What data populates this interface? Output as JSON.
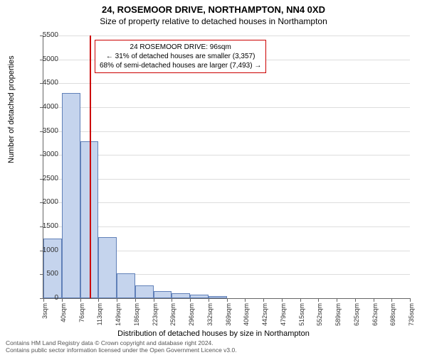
{
  "title": "24, ROSEMOOR DRIVE, NORTHAMPTON, NN4 0XD",
  "subtitle": "Size of property relative to detached houses in Northampton",
  "chart": {
    "type": "histogram",
    "ylabel": "Number of detached properties",
    "xlabel": "Distribution of detached houses by size in Northampton",
    "ylim": [
      0,
      5500
    ],
    "ytick_step": 500,
    "x_ticks": [
      "3sqm",
      "40sqm",
      "76sqm",
      "113sqm",
      "149sqm",
      "186sqm",
      "223sqm",
      "259sqm",
      "296sqm",
      "332sqm",
      "369sqm",
      "406sqm",
      "442sqm",
      "479sqm",
      "515sqm",
      "552sqm",
      "589sqm",
      "625sqm",
      "662sqm",
      "698sqm",
      "735sqm"
    ],
    "bars": [
      1250,
      4300,
      3280,
      1280,
      520,
      270,
      150,
      100,
      70,
      50,
      0,
      0,
      0,
      0,
      0,
      0,
      0,
      0,
      0,
      0
    ],
    "bar_fill": "#c5d4ed",
    "bar_stroke": "#6080b8",
    "grid_color": "#dddddd",
    "axis_color": "#666666",
    "background_color": "#ffffff",
    "marker_color": "#cc0000",
    "marker_value": 96,
    "x_min": 3,
    "x_max": 735
  },
  "annotation": {
    "line1": "24 ROSEMOOR DRIVE: 96sqm",
    "line2": "← 31% of detached houses are smaller (3,357)",
    "line3": "68% of semi-detached houses are larger (7,493) →"
  },
  "footer": {
    "line1": "Contains HM Land Registry data © Crown copyright and database right 2024.",
    "line2": "Contains public sector information licensed under the Open Government Licence v3.0."
  }
}
